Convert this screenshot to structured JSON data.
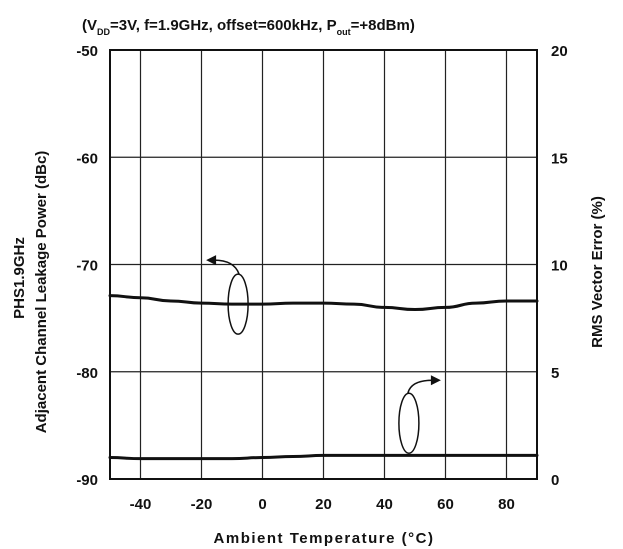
{
  "chart_data": {
    "type": "line",
    "conditions": {
      "open": "(V",
      "vdd_sub": "DD",
      "mid": "=3V, f=1.9GHz, offset=600kHz, P",
      "pout_sub": "out",
      "close": "=+8dBm)"
    },
    "xlabel": "Ambient Temperature (°C)",
    "ylabel_left_line1": "PHS1.9GHz",
    "ylabel_left_line2": "Adjacent Channel Leakage Power (dBc)",
    "ylabel_right": "RMS Vector Error (%)",
    "xlim": [
      -50,
      90
    ],
    "ylim_left": [
      -90,
      -50
    ],
    "ylim_right": [
      0,
      20
    ],
    "x_ticks": [
      -40,
      -20,
      0,
      20,
      40,
      60,
      80
    ],
    "x_tick_labels": [
      "-40",
      "-20",
      "0",
      "20",
      "40",
      "60",
      "80"
    ],
    "y_left_ticks": [
      -50,
      -60,
      -70,
      -80,
      -90
    ],
    "y_left_tick_labels": [
      "-50",
      "-60",
      "-70",
      "-80",
      "-90"
    ],
    "y_right_ticks": [
      20,
      15,
      10,
      5,
      0
    ],
    "y_right_tick_labels": [
      "20",
      "15",
      "10",
      "5",
      "0"
    ],
    "grid": true,
    "series": [
      {
        "axis": "left",
        "x": [
          -50,
          -40,
          -30,
          -20,
          -10,
          0,
          10,
          20,
          30,
          40,
          50,
          60,
          70,
          80,
          90
        ],
        "y": [
          -72.9,
          -73.1,
          -73.4,
          -73.6,
          -73.7,
          -73.7,
          -73.6,
          -73.6,
          -73.7,
          -74.0,
          -74.2,
          -74.0,
          -73.6,
          -73.4,
          -73.4
        ]
      },
      {
        "axis": "right",
        "x": [
          -50,
          -40,
          -30,
          -20,
          -10,
          0,
          10,
          20,
          30,
          40,
          50,
          60,
          70,
          80,
          90
        ],
        "y": [
          1.0,
          0.95,
          0.95,
          0.95,
          0.95,
          1.0,
          1.05,
          1.1,
          1.1,
          1.1,
          1.1,
          1.1,
          1.1,
          1.1,
          1.1
        ]
      }
    ]
  }
}
